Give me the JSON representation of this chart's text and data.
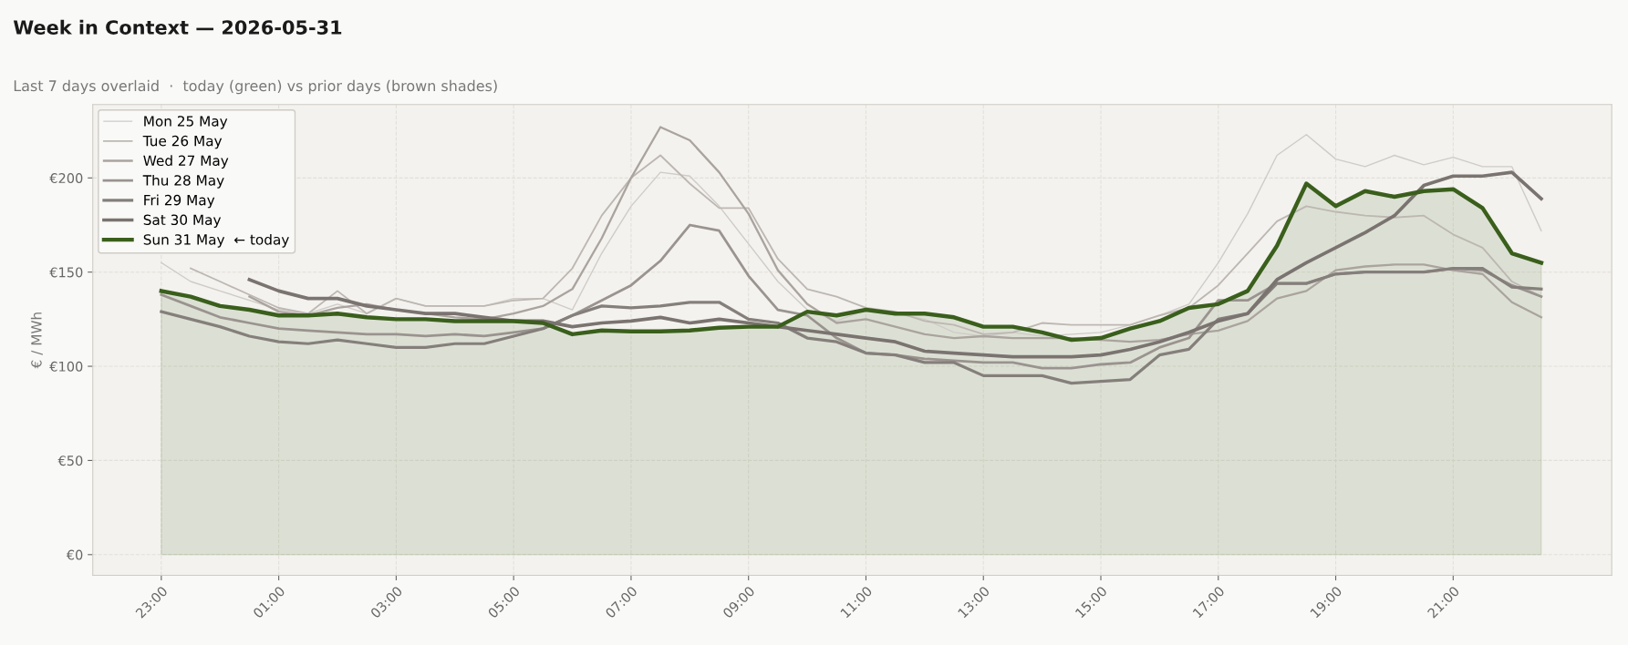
{
  "chart_data": {
    "type": "line",
    "title": "Week in Context — 2026-05-31",
    "subtitle": "Last 7 days overlaid  ·  today (green) vs prior days (brown shades)",
    "ylabel": "€ / MWh",
    "x": [
      "2026-05-30T23:00",
      "2026-05-30T23:30",
      "2026-05-31T00:00",
      "2026-05-31T00:30",
      "2026-05-31T01:00",
      "2026-05-31T01:30",
      "2026-05-31T02:00",
      "2026-05-31T02:30",
      "2026-05-31T03:00",
      "2026-05-31T03:30",
      "2026-05-31T04:00",
      "2026-05-31T04:30",
      "2026-05-31T05:00",
      "2026-05-31T05:30",
      "2026-05-31T06:00",
      "2026-05-31T06:30",
      "2026-05-31T07:00",
      "2026-05-31T07:30",
      "2026-05-31T08:00",
      "2026-05-31T08:30",
      "2026-05-31T09:00",
      "2026-05-31T09:30",
      "2026-05-31T10:00",
      "2026-05-31T10:30",
      "2026-05-31T11:00",
      "2026-05-31T11:30",
      "2026-05-31T12:00",
      "2026-05-31T12:30",
      "2026-05-31T13:00",
      "2026-05-31T13:30",
      "2026-05-31T14:00",
      "2026-05-31T14:30",
      "2026-05-31T15:00",
      "2026-05-31T15:30",
      "2026-05-31T16:00",
      "2026-05-31T16:30",
      "2026-05-31T17:00",
      "2026-05-31T17:30",
      "2026-05-31T18:00",
      "2026-05-31T18:30",
      "2026-05-31T19:00",
      "2026-05-31T19:30",
      "2026-05-31T20:00",
      "2026-05-31T20:30",
      "2026-05-31T21:00",
      "2026-05-31T21:30",
      "2026-05-31T22:00",
      "2026-05-31T22:30"
    ],
    "xlim": [
      "2026-05-30T21:50",
      "2026-05-31T23:42"
    ],
    "xticks": [
      {
        "value": "2026-05-30T23:00",
        "label": "23:00"
      },
      {
        "value": "2026-05-31T01:00",
        "label": "01:00"
      },
      {
        "value": "2026-05-31T03:00",
        "label": "03:00"
      },
      {
        "value": "2026-05-31T05:00",
        "label": "05:00"
      },
      {
        "value": "2026-05-31T07:00",
        "label": "07:00"
      },
      {
        "value": "2026-05-31T09:00",
        "label": "09:00"
      },
      {
        "value": "2026-05-31T11:00",
        "label": "11:00"
      },
      {
        "value": "2026-05-31T13:00",
        "label": "13:00"
      },
      {
        "value": "2026-05-31T15:00",
        "label": "15:00"
      },
      {
        "value": "2026-05-31T17:00",
        "label": "17:00"
      },
      {
        "value": "2026-05-31T19:00",
        "label": "19:00"
      },
      {
        "value": "2026-05-31T21:00",
        "label": "21:00"
      }
    ],
    "ylim": [
      -11,
      239
    ],
    "yticks": [
      {
        "value": 0,
        "label": "€0"
      },
      {
        "value": 50,
        "label": "€50"
      },
      {
        "value": 100,
        "label": "€100"
      },
      {
        "value": 150,
        "label": "€150"
      },
      {
        "value": 200,
        "label": "€200"
      }
    ],
    "grid": true,
    "legend": "top left",
    "series": [
      {
        "name": "Mon 25 May",
        "color": "#cfcbc7",
        "values": [
          155,
          145,
          140,
          135,
          130,
          128,
          133,
          128,
          136,
          132,
          132,
          132,
          136,
          136,
          130,
          160,
          185,
          203,
          201,
          185,
          165,
          145,
          130,
          124,
          130,
          128,
          125,
          118,
          116,
          118,
          116,
          117,
          118,
          122,
          127,
          133,
          155,
          181,
          212,
          223,
          210,
          206,
          212,
          207,
          211,
          206,
          206,
          172
        ]
      },
      {
        "name": "Tue 26 May",
        "color": "#bdb7b2",
        "values": [
          null,
          152,
          145,
          138,
          131,
          128,
          140,
          128,
          136,
          132,
          132,
          132,
          135,
          136,
          152,
          180,
          200,
          212,
          197,
          184,
          184,
          157,
          141,
          137,
          131,
          129,
          124,
          122,
          117,
          118,
          123,
          122,
          122,
          122,
          127,
          131,
          143,
          160,
          177,
          185,
          182,
          180,
          179,
          180,
          170,
          163,
          145,
          137
        ]
      },
      {
        "name": "Wed 27 May",
        "color": "#aaa39e",
        "values": [
          null,
          null,
          null,
          137,
          129,
          127,
          131,
          133,
          130,
          128,
          126,
          125,
          128,
          132,
          141,
          168,
          200,
          227,
          220,
          203,
          181,
          151,
          133,
          123,
          125,
          121,
          117,
          115,
          116,
          115,
          115,
          115,
          114,
          113,
          114,
          117,
          119,
          124,
          136,
          140,
          151,
          153,
          154,
          154,
          151,
          149,
          134,
          126
        ]
      },
      {
        "name": "Thu 28 May",
        "color": "#9a938f",
        "values": [
          138,
          132,
          126,
          123,
          120,
          119,
          118,
          117,
          117,
          116,
          117,
          116,
          118,
          120,
          127,
          135,
          143,
          156,
          175,
          172,
          148,
          130,
          127,
          115,
          107,
          106,
          104,
          103,
          102,
          102,
          99,
          99,
          101,
          102,
          110,
          115,
          135,
          135,
          144,
          144,
          149,
          150,
          150,
          150,
          152,
          151,
          143,
          137
        ]
      },
      {
        "name": "Fri 29 May",
        "color": "#857f7b",
        "values": [
          129,
          125,
          121,
          116,
          113,
          112,
          114,
          112,
          110,
          110,
          112,
          112,
          116,
          120,
          127,
          132,
          131,
          132,
          134,
          134,
          125,
          123,
          115,
          113,
          107,
          106,
          102,
          102,
          95,
          95,
          95,
          91,
          92,
          93,
          106,
          109,
          125,
          128,
          144,
          144,
          149,
          150,
          150,
          150,
          152,
          152,
          142,
          141
        ]
      },
      {
        "name": "Sat 30 May",
        "color": "#7a7370",
        "values": [
          null,
          null,
          null,
          146,
          140,
          136,
          136,
          132,
          130,
          128,
          128,
          126,
          124,
          124,
          121,
          123,
          124,
          126,
          123,
          125,
          123,
          121,
          119,
          117,
          115,
          113,
          108,
          107,
          106,
          105,
          105,
          105,
          106,
          109,
          113,
          118,
          124,
          128,
          146,
          155,
          163,
          171,
          180,
          196,
          201,
          201,
          203,
          189
        ]
      },
      {
        "name": "Sun 31 May  ← today",
        "color": "#3a5f1c",
        "type": "area",
        "values": [
          140,
          137,
          132,
          130,
          127,
          127,
          128,
          126,
          125,
          125,
          124,
          124,
          124,
          123,
          117,
          119,
          118.5,
          118.5,
          119,
          120.5,
          121,
          121,
          129,
          127,
          130,
          128,
          128,
          126,
          121,
          121,
          118,
          114,
          115,
          120,
          124,
          131,
          133,
          140,
          164,
          197,
          185,
          193,
          190,
          193,
          194,
          184,
          160,
          155
        ]
      }
    ]
  }
}
